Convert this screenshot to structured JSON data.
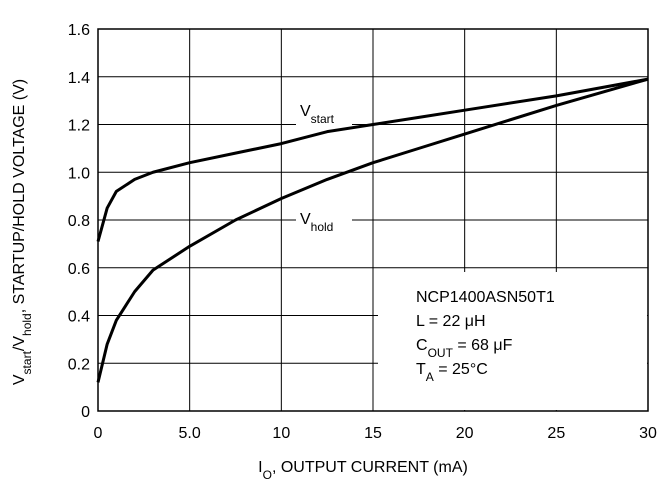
{
  "chart_data": {
    "type": "line",
    "x": [
      0,
      0.5,
      1,
      2,
      3,
      5,
      7.5,
      10,
      12.5,
      15,
      17.5,
      20,
      25,
      30
    ],
    "series": [
      {
        "label": [
          {
            "text": "V"
          },
          {
            "text": "start",
            "sub": true
          }
        ],
        "color": "#000000",
        "values": [
          0.71,
          0.85,
          0.92,
          0.97,
          1.0,
          1.04,
          1.08,
          1.12,
          1.17,
          1.2,
          1.23,
          1.26,
          1.32,
          1.39
        ]
      },
      {
        "label": [
          {
            "text": "V"
          },
          {
            "text": "hold",
            "sub": true
          }
        ],
        "color": "#000000",
        "values": [
          0.12,
          0.28,
          0.38,
          0.5,
          0.59,
          0.69,
          0.8,
          0.89,
          0.97,
          1.04,
          1.1,
          1.16,
          1.28,
          1.39
        ]
      }
    ],
    "xlabel": [
      {
        "text": "I"
      },
      {
        "text": "O",
        "sub": true
      },
      {
        "text": ", OUTPUT CURRENT (mA)"
      }
    ],
    "ylabel": [
      {
        "text": "V"
      },
      {
        "text": "start",
        "sub": true
      },
      {
        "text": "/V"
      },
      {
        "text": "hold",
        "sub": true
      },
      {
        "text": ", STARTUP/HOLD VOLTAGE (V)"
      }
    ],
    "xlim": [
      0,
      30
    ],
    "xticks": [
      0,
      {
        "value": 5,
        "label": "5.0"
      },
      10,
      15,
      20,
      25,
      30
    ],
    "ylim": [
      0,
      1.6
    ],
    "yticks": [
      0,
      0.2,
      0.4,
      0.6,
      0.8,
      {
        "value": 1,
        "label": "1.0"
      },
      1.2,
      1.4,
      1.6
    ],
    "grid": true,
    "annotation": [
      [
        {
          "text": "NCP1400ASN50T1"
        }
      ],
      [
        {
          "text": "L = 22 μH"
        }
      ],
      [
        {
          "text": "C"
        },
        {
          "text": "OUT",
          "sub": true
        },
        {
          "text": " = 68 μF"
        }
      ],
      [
        {
          "text": "T"
        },
        {
          "text": "A",
          "sub": true
        },
        {
          "text": " = 25°C"
        }
      ]
    ]
  }
}
